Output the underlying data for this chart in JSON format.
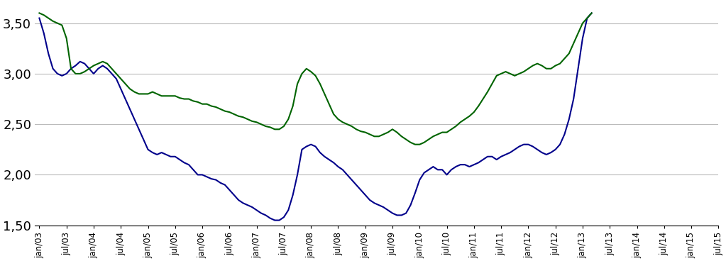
{
  "title": "",
  "ylabel": "",
  "xlabel": "",
  "ylim": [
    1.5,
    3.7
  ],
  "yticks": [
    1.5,
    2.0,
    2.5,
    3.0,
    3.5
  ],
  "ytick_labels": [
    "1,50",
    "2,00",
    "2,50",
    "3,00",
    "3,50"
  ],
  "x_tick_labels": [
    "jan/03",
    "jul/03",
    "jan/04",
    "jul/04",
    "jan/05",
    "jul/05",
    "jan/06",
    "jul/06",
    "jan/07",
    "jul/07",
    "jan/08",
    "jul/08",
    "jan/09",
    "jul/09",
    "jan/10",
    "jul/10",
    "jan/11",
    "jul/11",
    "jan/12",
    "jul/12",
    "jan/13",
    "jul/13",
    "jan/14",
    "jul/14",
    "jan/15",
    "jul/15"
  ],
  "blue_line_color": "#00008B",
  "green_line_color": "#006400",
  "line_width": 1.5,
  "background_color": "#ffffff",
  "grid_color": "#bbbbbb",
  "blue_monthly": [
    3.55,
    3.4,
    3.2,
    3.05,
    3.0,
    2.98,
    3.0,
    3.05,
    3.08,
    3.12,
    3.1,
    3.05,
    3.0,
    3.05,
    3.08,
    3.05,
    3.0,
    2.95,
    2.85,
    2.75,
    2.65,
    2.55,
    2.45,
    2.35,
    2.25,
    2.22,
    2.2,
    2.22,
    2.2,
    2.18,
    2.18,
    2.15,
    2.12,
    2.1,
    2.05,
    2.0,
    2.0,
    1.98,
    1.96,
    1.95,
    1.92,
    1.9,
    1.85,
    1.8,
    1.75,
    1.72,
    1.7,
    1.68,
    1.65,
    1.62,
    1.6,
    1.57,
    1.55,
    1.55,
    1.58,
    1.65,
    1.8,
    2.0,
    2.25,
    2.28,
    2.3,
    2.28,
    2.22,
    2.18,
    2.15,
    2.12,
    2.08,
    2.05,
    2.0,
    1.95,
    1.9,
    1.85,
    1.8,
    1.75,
    1.72,
    1.7,
    1.68,
    1.65,
    1.62,
    1.6,
    1.6,
    1.62,
    1.7,
    1.82,
    1.95,
    2.02,
    2.05,
    2.08,
    2.05,
    2.05,
    2.0,
    2.05,
    2.08,
    2.1,
    2.1,
    2.08,
    2.1,
    2.12,
    2.15,
    2.18,
    2.18,
    2.15,
    2.18,
    2.2,
    2.22,
    2.25,
    2.28,
    2.3,
    2.3,
    2.28,
    2.25,
    2.22,
    2.2,
    2.22,
    2.25,
    2.3,
    2.4,
    2.55,
    2.75,
    3.05,
    3.35,
    3.55,
    3.6
  ],
  "green_monthly": [
    3.6,
    3.58,
    3.55,
    3.52,
    3.5,
    3.48,
    3.35,
    3.05,
    3.0,
    3.0,
    3.02,
    3.05,
    3.08,
    3.1,
    3.12,
    3.1,
    3.05,
    3.0,
    2.95,
    2.9,
    2.85,
    2.82,
    2.8,
    2.8,
    2.8,
    2.82,
    2.8,
    2.78,
    2.78,
    2.78,
    2.78,
    2.76,
    2.75,
    2.75,
    2.73,
    2.72,
    2.7,
    2.7,
    2.68,
    2.67,
    2.65,
    2.63,
    2.62,
    2.6,
    2.58,
    2.57,
    2.55,
    2.53,
    2.52,
    2.5,
    2.48,
    2.47,
    2.45,
    2.45,
    2.48,
    2.55,
    2.68,
    2.9,
    3.0,
    3.05,
    3.02,
    2.98,
    2.9,
    2.8,
    2.7,
    2.6,
    2.55,
    2.52,
    2.5,
    2.48,
    2.45,
    2.43,
    2.42,
    2.4,
    2.38,
    2.38,
    2.4,
    2.42,
    2.45,
    2.42,
    2.38,
    2.35,
    2.32,
    2.3,
    2.3,
    2.32,
    2.35,
    2.38,
    2.4,
    2.42,
    2.42,
    2.45,
    2.48,
    2.52,
    2.55,
    2.58,
    2.62,
    2.68,
    2.75,
    2.82,
    2.9,
    2.98,
    3.0,
    3.02,
    3.0,
    2.98,
    3.0,
    3.02,
    3.05,
    3.08,
    3.1,
    3.08,
    3.05,
    3.05,
    3.08,
    3.1,
    3.15,
    3.2,
    3.3,
    3.4,
    3.5,
    3.55,
    3.6
  ]
}
